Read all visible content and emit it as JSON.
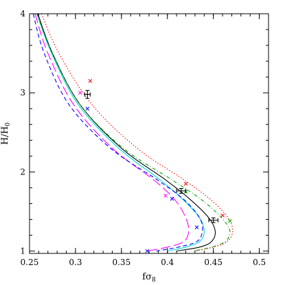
{
  "chart_data": {
    "type": "line",
    "xlabel": "fσ",
    "xlabel_sub": "8",
    "ylabel": "H/H",
    "ylabel_sub": "0",
    "xlim": [
      0.25,
      0.51
    ],
    "ylim": [
      0.97,
      4.0
    ],
    "grid": false,
    "legend": "none",
    "x_ticks": [
      0.25,
      0.3,
      0.35,
      0.4,
      0.45,
      0.5
    ],
    "x_tick_labels": [
      "0.25",
      "0.3",
      "0.35",
      "0.4",
      "0.45",
      "0.5"
    ],
    "y_ticks": [
      1,
      2,
      3,
      4
    ],
    "y_tick_labels": [
      "1",
      "2",
      "3",
      "4"
    ],
    "series": [
      {
        "color": "#000000",
        "dash": "",
        "x": [
          0.259,
          0.275,
          0.305,
          0.35,
          0.398,
          0.425,
          0.445,
          0.452,
          0.448,
          0.435,
          0.41
        ],
        "y": [
          4.0,
          3.5,
          2.85,
          2.3,
          1.9,
          1.65,
          1.42,
          1.25,
          1.12,
          1.05,
          1.0
        ]
      },
      {
        "color": "#00d8d8",
        "dash": "",
        "x": [
          0.258,
          0.274,
          0.303,
          0.347,
          0.392,
          0.417,
          0.435,
          0.44,
          0.435,
          0.42,
          0.4
        ],
        "y": [
          4.0,
          3.5,
          2.85,
          2.3,
          1.9,
          1.65,
          1.42,
          1.25,
          1.12,
          1.05,
          1.0
        ]
      },
      {
        "color": "#ff0000",
        "dash": "1.5,2.5",
        "x": [
          0.263,
          0.282,
          0.318,
          0.367,
          0.418,
          0.447,
          0.466,
          0.471,
          0.465,
          0.45,
          0.43
        ],
        "y": [
          4.0,
          3.5,
          2.85,
          2.3,
          1.9,
          1.65,
          1.42,
          1.25,
          1.12,
          1.05,
          1.0
        ]
      },
      {
        "color": "#00a000",
        "dash": "5,3,1,3",
        "x": [
          0.258,
          0.275,
          0.305,
          0.352,
          0.405,
          0.437,
          0.459,
          0.468,
          0.463,
          0.448,
          0.428
        ],
        "y": [
          4.0,
          3.5,
          2.85,
          2.3,
          1.9,
          1.65,
          1.42,
          1.25,
          1.12,
          1.05,
          1.0
        ]
      },
      {
        "color": "#ff00ff",
        "dash": "14,5",
        "x": [
          0.256,
          0.27,
          0.298,
          0.34,
          0.385,
          0.408,
          0.42,
          0.423,
          0.418,
          0.4,
          0.378
        ],
        "y": [
          4.0,
          3.5,
          2.85,
          2.3,
          1.9,
          1.65,
          1.42,
          1.25,
          1.12,
          1.05,
          1.0
        ]
      },
      {
        "color": "#0000ff",
        "dash": "6,4",
        "x": [
          0.254,
          0.266,
          0.293,
          0.338,
          0.389,
          0.418,
          0.435,
          0.438,
          0.432,
          0.412,
          0.388
        ],
        "y": [
          4.0,
          3.5,
          2.85,
          2.3,
          1.9,
          1.65,
          1.42,
          1.25,
          1.12,
          1.05,
          1.0
        ]
      }
    ],
    "crosses": [
      {
        "color": "#ff0000",
        "x": 0.316,
        "y": 3.15
      },
      {
        "color": "#ff0000",
        "x": 0.42,
        "y": 1.85
      },
      {
        "color": "#ff0000",
        "x": 0.46,
        "y": 1.45
      },
      {
        "color": "#00a000",
        "x": 0.42,
        "y": 1.75
      },
      {
        "color": "#00a000",
        "x": 0.468,
        "y": 1.38
      },
      {
        "color": "#ff00ff",
        "x": 0.305,
        "y": 3.0
      },
      {
        "color": "#ff00ff",
        "x": 0.398,
        "y": 1.7
      },
      {
        "color": "#0000ff",
        "x": 0.313,
        "y": 2.8
      },
      {
        "color": "#0000ff",
        "x": 0.405,
        "y": 1.66
      },
      {
        "color": "#0000ff",
        "x": 0.432,
        "y": 1.3
      },
      {
        "color": "#0000ff",
        "x": 0.378,
        "y": 1.0
      }
    ],
    "error_points": [
      {
        "x": 0.313,
        "y": 2.98,
        "xerr": 0.003,
        "yerr": 0.05
      },
      {
        "x": 0.415,
        "y": 1.76,
        "xerr": 0.005,
        "yerr": 0.03
      },
      {
        "x": 0.45,
        "y": 1.39,
        "xerr": 0.005,
        "yerr": 0.03
      }
    ]
  }
}
